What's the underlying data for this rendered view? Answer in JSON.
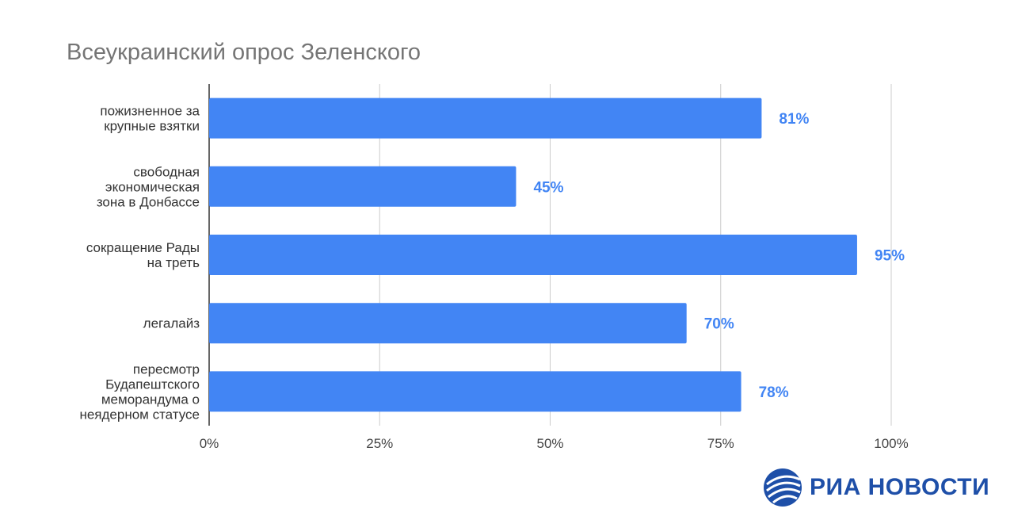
{
  "brand": {
    "name": "РИА НОВОСТИ",
    "color": "#1e4fa8"
  },
  "chart_data": {
    "type": "bar",
    "orientation": "horizontal",
    "title": "Всеукраинский опрос Зеленского",
    "xlabel": "",
    "ylabel": "",
    "xlim": [
      0,
      100
    ],
    "x_ticks": [
      "0%",
      "25%",
      "50%",
      "75%",
      "100%"
    ],
    "grid": true,
    "legend": "none",
    "bar_color": "#4285f4",
    "label_color": "#4285f4",
    "categories": [
      [
        "пожизненное за",
        "крупные взятки"
      ],
      [
        "свободная",
        "экономическая",
        "зона в Донбассе"
      ],
      [
        "сокращение Рады",
        "на треть"
      ],
      [
        "легалайз"
      ],
      [
        "пересмотр",
        "Будапештского",
        "меморандума о",
        "неядерном статусе"
      ]
    ],
    "values": [
      81,
      45,
      95,
      70,
      78
    ],
    "value_labels": [
      "81%",
      "45%",
      "95%",
      "70%",
      "78%"
    ]
  }
}
